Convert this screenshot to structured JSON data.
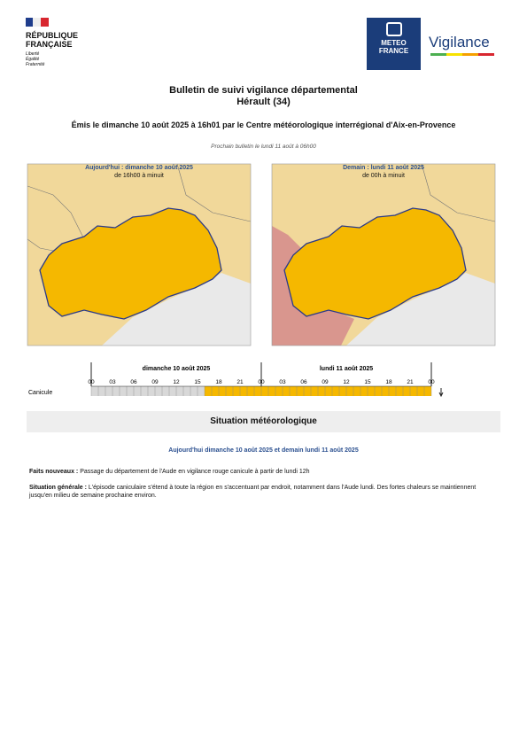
{
  "header": {
    "republic": [
      "RÉPUBLIQUE",
      "FRANÇAISE"
    ],
    "motto": [
      "Liberté",
      "Égalité",
      "Fraternité"
    ],
    "meteo": [
      "METEO",
      "FRANCE"
    ],
    "vigilance": "Vigilance"
  },
  "title": {
    "line1": "Bulletin de suivi vigilance départemental",
    "line2": "Hérault (34)",
    "issued": "Émis le dimanche 10 août 2025 à 16h01 par le Centre météorologique interrégional d'Aix-en-Provence",
    "next": "Prochain bulletin le lundi 11 août à 06h00"
  },
  "maps": [
    {
      "title": "Aujourd'hui : dimanche 10 août 2025",
      "period": "de 16h00 à minuit"
    },
    {
      "title": "Demain : lundi 11 août 2025",
      "period": "de 00h à minuit"
    }
  ],
  "timeline": {
    "days": [
      "dimanche 10 août 2025",
      "lundi 11 août 2025"
    ],
    "hours": [
      "00",
      "03",
      "06",
      "09",
      "12",
      "15",
      "18",
      "21",
      "00",
      "03",
      "06",
      "09",
      "12",
      "15",
      "18",
      "21",
      "00"
    ],
    "row_label": "Canicule"
  },
  "section": "Situation météorologique",
  "situation": {
    "subtitle": "Aujourd'hui dimanche 10 août 2025 et demain lundi 11 août 2025",
    "paragraphs": [
      {
        "label": "Faits nouveaux :",
        "text": "Passage du département de l'Aude en vigilance rouge canicule à partir de lundi 12h"
      },
      {
        "label": "Situation générale :",
        "text": "L'épisode caniculaire s'étend à toute la région en s'accentuant par endroit, notamment dans l'Aude lundi. Des fortes chaleurs se maintiennent jusqu'en milieu de semaine prochaine environ."
      }
    ]
  }
}
